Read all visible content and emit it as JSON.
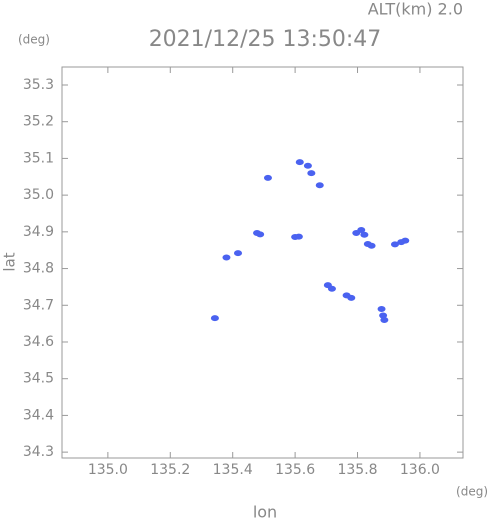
{
  "header": {
    "altitude": "ALT(km)  2.0",
    "y_unit": "(deg)",
    "x_unit": "(deg)"
  },
  "chart_data": {
    "type": "scatter",
    "title": "2021/12/25 13:50:47",
    "x_label": "lon",
    "y_label": "lat",
    "color": "#4a62f0",
    "x": [
      135.513,
      135.615,
      135.641,
      135.652,
      135.679,
      135.478,
      135.488,
      135.6,
      135.612,
      135.417,
      135.796,
      135.812,
      135.822,
      135.833,
      135.845,
      135.92,
      135.94,
      135.953,
      135.705,
      135.718,
      135.765,
      135.78,
      135.877,
      135.882,
      135.886,
      135.343,
      135.38
    ],
    "y": [
      35.047,
      35.09,
      35.08,
      35.06,
      35.027,
      34.897,
      34.893,
      34.886,
      34.887,
      34.842,
      34.897,
      34.905,
      34.892,
      34.867,
      34.862,
      34.866,
      34.872,
      34.876,
      34.755,
      34.745,
      34.727,
      34.72,
      34.69,
      34.672,
      34.66,
      34.665,
      34.83
    ],
    "xlim": [
      134.853,
      136.138
    ],
    "ylim": [
      34.284,
      35.349
    ],
    "xticks": [
      {
        "value": 135.0,
        "label": "135.0"
      },
      135.2,
      135.4,
      135.6,
      135.8,
      {
        "value": 136.0,
        "label": "136.0"
      }
    ],
    "yticks": [
      35.3,
      35.2,
      35.1,
      {
        "value": 35.0,
        "label": "35.0"
      },
      34.9,
      34.8,
      34.7,
      34.6,
      34.5,
      34.4,
      34.3
    ]
  }
}
